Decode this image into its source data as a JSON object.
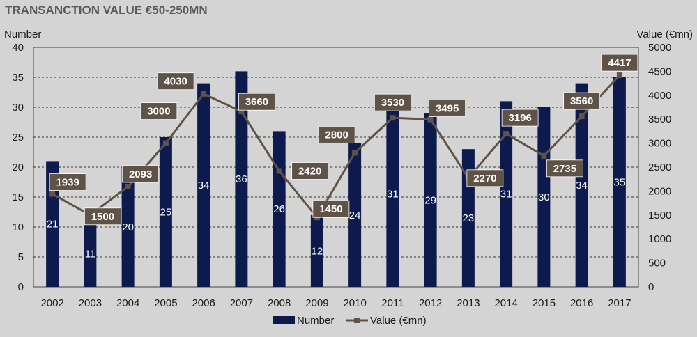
{
  "title": "TRANSANCTION VALUE €50-250MN",
  "colors": {
    "background": "#d4d4d4",
    "bar": "#0d1a4e",
    "line": "#5e5346",
    "label_box": "#5e5346",
    "grid": "#333333"
  },
  "chart_data": {
    "type": "bar+line",
    "categories": [
      "2002",
      "2003",
      "2004",
      "2005",
      "2006",
      "2007",
      "2008",
      "2009",
      "2010",
      "2011",
      "2012",
      "2013",
      "2014",
      "2015",
      "2016",
      "2017"
    ],
    "series": [
      {
        "name": "Number",
        "type": "bar",
        "axis": "left",
        "values": [
          21,
          11,
          20,
          25,
          34,
          36,
          26,
          12,
          24,
          31,
          29,
          23,
          31,
          30,
          34,
          35
        ]
      },
      {
        "name": "Value (€mn)",
        "type": "line",
        "axis": "right",
        "values": [
          1939,
          1500,
          2093,
          3000,
          4030,
          3660,
          2420,
          1450,
          2800,
          3530,
          3495,
          2270,
          3196,
          2735,
          3560,
          4417
        ]
      }
    ],
    "ylabel_left": "Number",
    "ylabel_right": "Value (€mn)",
    "ylim_left": [
      0,
      40
    ],
    "ylim_right": [
      0,
      5000
    ],
    "yticks_left": [
      0,
      5,
      10,
      15,
      20,
      25,
      30,
      35,
      40
    ],
    "yticks_right": [
      0,
      500,
      1000,
      1500,
      2000,
      2500,
      3000,
      3500,
      4000,
      4500,
      5000
    ],
    "legend": [
      "Number",
      "Value (€mn)"
    ],
    "legend_position": "bottom",
    "grid": "horizontal-dashed"
  }
}
